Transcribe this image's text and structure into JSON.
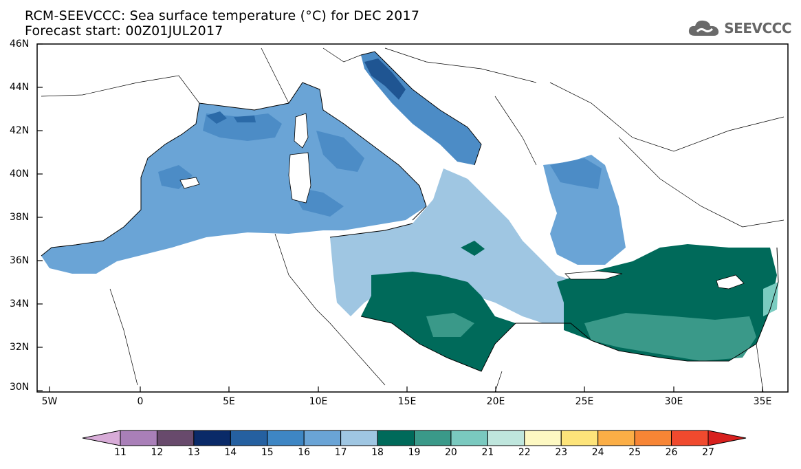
{
  "title": {
    "line1": "RCM-SEEVCCC: Sea surface temperature (°C) for DEC 2017",
    "line2": "Forecast start: 00Z01JUL2017"
  },
  "logo": {
    "text": "SEEVCCC",
    "icon": "cloud-icon"
  },
  "map": {
    "lat_ticks": [
      "46N",
      "44N",
      "42N",
      "40N",
      "38N",
      "36N",
      "34N",
      "32N",
      "30N"
    ],
    "lon_ticks": [
      "5W",
      "0",
      "5E",
      "10E",
      "15E",
      "20E",
      "25E",
      "30E",
      "35E"
    ],
    "colors": {
      "t15": "#2b6aa8",
      "t16": "#4c8cc6",
      "t17": "#6aa4d6",
      "t18": "#9fc6e2",
      "t19": "#006a5a",
      "t20": "#3a9989",
      "t21": "#7accc0",
      "t14_dark": "#1f5592",
      "land_outline": "#000000"
    }
  },
  "colorbar": {
    "labels": [
      "11",
      "12",
      "13",
      "14",
      "15",
      "16",
      "17",
      "18",
      "19",
      "20",
      "21",
      "22",
      "23",
      "24",
      "25",
      "26",
      "27"
    ],
    "colors": [
      "#d8acd8",
      "#a97fb8",
      "#684a6c",
      "#0a2a68",
      "#2560a0",
      "#3e86c4",
      "#6aa4d6",
      "#9fc6e2",
      "#006a5a",
      "#3a9989",
      "#7ac9bf",
      "#bfe6dd",
      "#fdf8c2",
      "#fde47a",
      "#fbae46",
      "#f78535",
      "#f04a2e",
      "#d8201e"
    ]
  }
}
